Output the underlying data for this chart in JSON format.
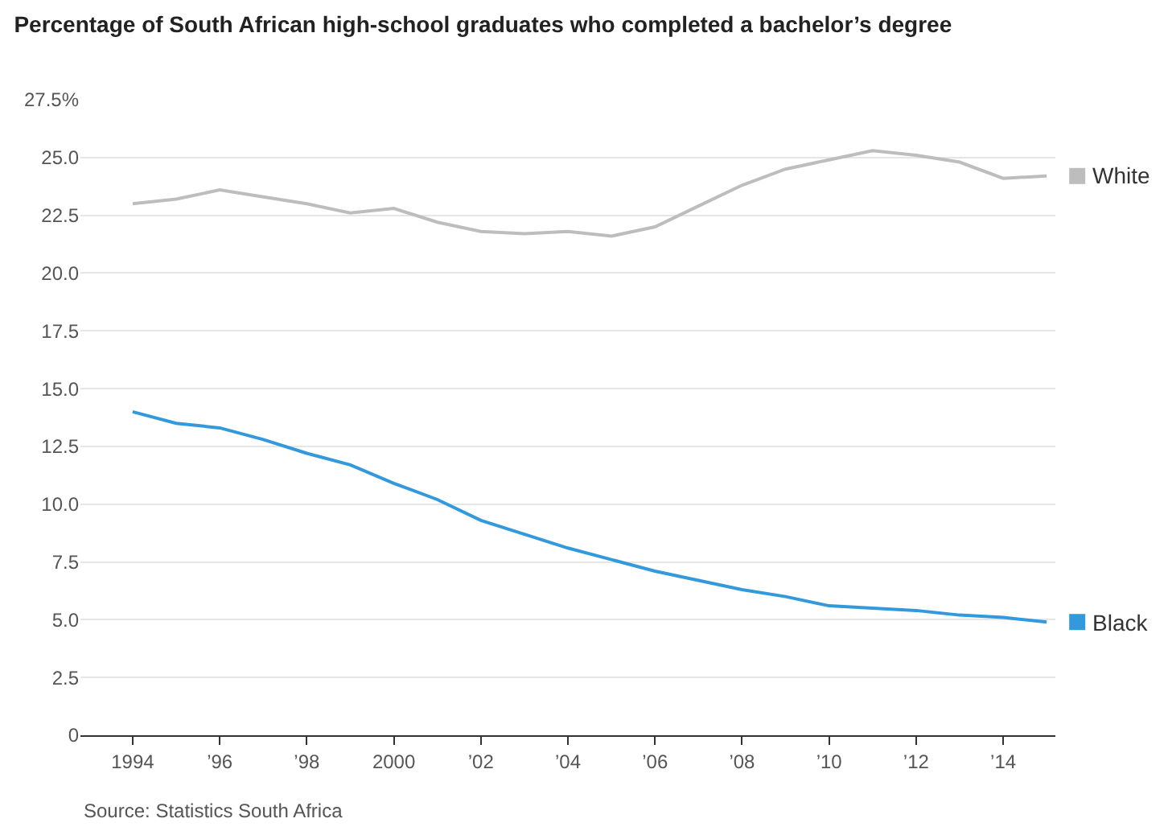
{
  "chart_data": {
    "type": "line",
    "title": "Percentage of South African high-school graduates who completed a bachelor’s degree",
    "x": [
      1994,
      1995,
      1996,
      1997,
      1998,
      1999,
      2000,
      2001,
      2002,
      2003,
      2004,
      2005,
      2006,
      2007,
      2008,
      2009,
      2010,
      2011,
      2012,
      2013,
      2014,
      2015
    ],
    "series": [
      {
        "name": "White",
        "color": "#bdbdbd",
        "values": [
          23.0,
          23.2,
          23.6,
          23.3,
          23.0,
          22.6,
          22.8,
          22.2,
          21.8,
          21.7,
          21.8,
          21.6,
          22.0,
          22.9,
          23.8,
          24.5,
          24.9,
          25.3,
          25.1,
          24.8,
          24.1,
          24.2
        ]
      },
      {
        "name": "Black",
        "color": "#3399dd",
        "values": [
          14.0,
          13.5,
          13.3,
          12.8,
          12.2,
          11.7,
          10.9,
          10.2,
          9.3,
          8.7,
          8.1,
          7.6,
          7.1,
          6.7,
          6.3,
          6.0,
          5.6,
          5.5,
          5.4,
          5.2,
          5.1,
          4.9
        ]
      }
    ],
    "xlim": [
      1992.8,
      2015.2
    ],
    "xticks": [
      1994,
      {
        "value": 1996,
        "label": "’96"
      },
      {
        "value": 1998,
        "label": "’98"
      },
      2000,
      {
        "value": 2002,
        "label": "’02"
      },
      {
        "value": 2004,
        "label": "’04"
      },
      {
        "value": 2006,
        "label": "’06"
      },
      {
        "value": 2008,
        "label": "’08"
      },
      {
        "value": 2010,
        "label": "’10"
      },
      {
        "value": 2012,
        "label": "’12"
      },
      {
        "value": 2014,
        "label": "’14"
      }
    ],
    "ylim": [
      0,
      27.5
    ],
    "yticks": [
      0,
      {
        "value": 2.5,
        "label": "2.5"
      },
      {
        "value": 5,
        "label": "5.0"
      },
      {
        "value": 7.5,
        "label": "7.5"
      },
      {
        "value": 10,
        "label": "10.0"
      },
      {
        "value": 12.5,
        "label": "12.5"
      },
      {
        "value": 15,
        "label": "15.0"
      },
      {
        "value": 17.5,
        "label": "17.5"
      },
      {
        "value": 20,
        "label": "20.0"
      },
      {
        "value": 22.5,
        "label": "22.5"
      },
      {
        "value": 25,
        "label": "25.0"
      },
      {
        "value": 27.5,
        "label": "27.5%"
      }
    ],
    "grid": "y",
    "marker": "none",
    "legend": "right",
    "line_style": "solid",
    "annotations": [
      "Source: Statistics South Africa"
    ]
  }
}
